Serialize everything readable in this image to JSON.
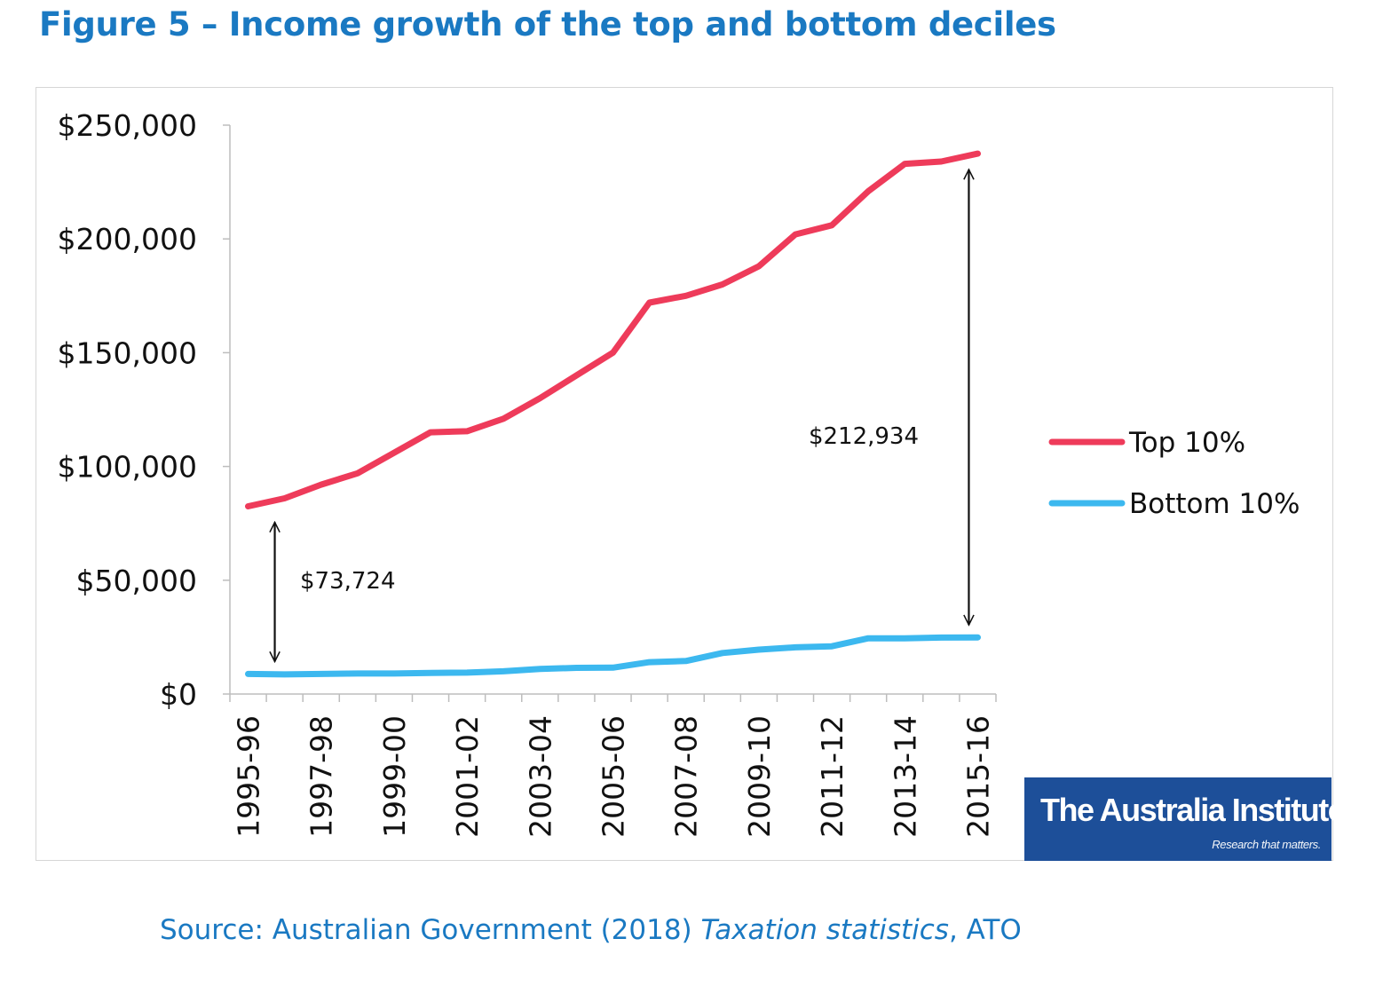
{
  "figure_title": "Figure 5 – Income growth of the top and bottom deciles",
  "source": {
    "prefix": "Source: Australian Government (2018) ",
    "italic": "Taxation statistics",
    "suffix": ", ATO"
  },
  "logo": {
    "name": "The Australia Institute",
    "tagline": "Research that matters."
  },
  "colors": {
    "top": "#ee3b5a",
    "bottom": "#3cb8ef",
    "title": "#1a79c2",
    "logo_bg": "#1d4f99"
  },
  "chart_data": {
    "type": "line",
    "title": "",
    "xlabel": "",
    "ylabel": "",
    "ylim": [
      0,
      250000
    ],
    "y_ticks": [
      "$0",
      "$50,000",
      "$100,000",
      "$150,000",
      "$200,000",
      "$250,000"
    ],
    "x": [
      "1995-96",
      "1996-97",
      "1997-98",
      "1998-99",
      "1999-00",
      "2000-01",
      "2001-02",
      "2002-03",
      "2003-04",
      "2004-05",
      "2005-06",
      "2006-07",
      "2007-08",
      "2008-09",
      "2009-10",
      "2010-11",
      "2011-12",
      "2012-13",
      "2013-14",
      "2014-15",
      "2015-16"
    ],
    "x_tick_labels": [
      "1995-96",
      "1997-98",
      "1999-00",
      "2001-02",
      "2003-04",
      "2005-06",
      "2007-08",
      "2009-10",
      "2011-12",
      "2013-14",
      "2015-16"
    ],
    "legend_position": "right",
    "grid": false,
    "series": [
      {
        "name": "Top 10%",
        "values": [
          82500,
          86000,
          92000,
          97000,
          106000,
          115000,
          115500,
          121000,
          130000,
          140000,
          150000,
          172000,
          175000,
          180000,
          188000,
          202000,
          206000,
          221000,
          233000,
          234000,
          237500
        ]
      },
      {
        "name": "Bottom 10%",
        "values": [
          8800,
          8600,
          8800,
          9000,
          9000,
          9300,
          9400,
          10000,
          11000,
          11500,
          11600,
          14000,
          14500,
          18000,
          19500,
          20500,
          21000,
          24500,
          24500,
          24800,
          24900
        ]
      }
    ],
    "annotations": [
      {
        "text": "$73,724",
        "from_category": "1995-96",
        "from_value": 8800,
        "to_value": 82500
      },
      {
        "text": "$212,934",
        "from_category": "2015-16",
        "from_value": 24900,
        "to_value": 237500
      }
    ]
  }
}
